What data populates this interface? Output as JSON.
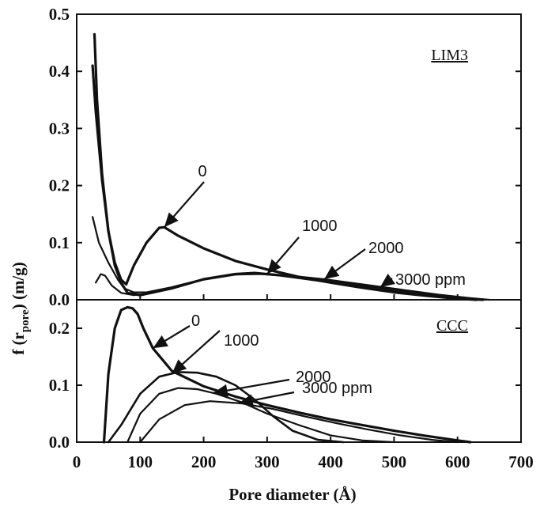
{
  "chart_data": [
    {
      "panel": "top",
      "type": "line",
      "label": "LIM3",
      "xlim": [
        0,
        700
      ],
      "ylim": [
        0,
        0.5
      ],
      "yticks": [
        "0.0",
        "0.1",
        "0.2",
        "0.3",
        "0.4",
        "0.5"
      ],
      "series": [
        {
          "name": "0",
          "x": [
            25,
            30,
            40,
            50,
            60,
            70,
            78,
            90,
            110,
            130,
            138,
            160,
            200,
            250,
            300,
            350,
            400,
            450,
            500,
            550,
            600,
            630
          ],
          "y": [
            0.41,
            0.33,
            0.21,
            0.12,
            0.065,
            0.035,
            0.027,
            0.06,
            0.1,
            0.126,
            0.127,
            0.112,
            0.09,
            0.068,
            0.053,
            0.04,
            0.03,
            0.021,
            0.013,
            0.007,
            0.002,
            0.0
          ]
        },
        {
          "name": "1000",
          "x": [
            28,
            32,
            40,
            50,
            60,
            70,
            80,
            100,
            150,
            200,
            250,
            280,
            320,
            380,
            440,
            500,
            560,
            610,
            640
          ],
          "y": [
            0.465,
            0.35,
            0.22,
            0.12,
            0.06,
            0.03,
            0.012,
            0.008,
            0.02,
            0.036,
            0.045,
            0.047,
            0.043,
            0.034,
            0.025,
            0.016,
            0.008,
            0.002,
            0.0
          ]
        },
        {
          "name": "2000",
          "x": [
            25,
            35,
            50,
            65,
            75,
            90,
            110,
            150,
            200,
            250,
            285,
            330,
            390,
            450,
            510,
            570,
            620,
            650
          ],
          "y": [
            0.145,
            0.1,
            0.065,
            0.035,
            0.02,
            0.013,
            0.013,
            0.022,
            0.035,
            0.044,
            0.046,
            0.043,
            0.036,
            0.027,
            0.018,
            0.009,
            0.003,
            0.0
          ]
        },
        {
          "name": "3000 ppm",
          "x": [
            30,
            38,
            45,
            55,
            70,
            90,
            120,
            160,
            200,
            250,
            290,
            340,
            400,
            460,
            520,
            580,
            630
          ],
          "y": [
            0.03,
            0.045,
            0.042,
            0.025,
            0.012,
            0.008,
            0.012,
            0.025,
            0.036,
            0.044,
            0.045,
            0.041,
            0.034,
            0.025,
            0.015,
            0.006,
            0.0
          ]
        }
      ],
      "annotations": [
        {
          "text": "0",
          "x": 138
        },
        {
          "text": "1000",
          "x": 300
        },
        {
          "text": "2000",
          "x": 390
        },
        {
          "text": "3000 ppm",
          "x": 478
        }
      ]
    },
    {
      "panel": "bottom",
      "type": "line",
      "label": "CCC",
      "xlim": [
        0,
        700
      ],
      "ylim": [
        0,
        0.25
      ],
      "yticks": [
        "0.0",
        "0.1",
        "0.2"
      ],
      "series": [
        {
          "name": "0",
          "x": [
            43,
            50,
            60,
            70,
            80,
            88,
            96,
            105,
            120,
            150,
            200,
            250,
            300,
            350,
            400,
            450,
            500,
            550,
            600,
            620
          ],
          "y": [
            0.0,
            0.12,
            0.2,
            0.232,
            0.237,
            0.235,
            0.225,
            0.2,
            0.165,
            0.125,
            0.098,
            0.08,
            0.065,
            0.052,
            0.04,
            0.03,
            0.02,
            0.011,
            0.003,
            0.0
          ]
        },
        {
          "name": "1000",
          "x": [
            50,
            70,
            100,
            130,
            160,
            190,
            220,
            250,
            280,
            310,
            340,
            380,
            420
          ],
          "y": [
            0.0,
            0.03,
            0.085,
            0.115,
            0.123,
            0.122,
            0.115,
            0.1,
            0.075,
            0.045,
            0.02,
            0.004,
            0.0
          ]
        },
        {
          "name": "2000",
          "x": [
            80,
            100,
            130,
            160,
            190,
            220,
            260,
            300,
            350,
            400,
            450,
            500
          ],
          "y": [
            0.0,
            0.05,
            0.085,
            0.095,
            0.093,
            0.085,
            0.07,
            0.05,
            0.03,
            0.012,
            0.003,
            0.0
          ]
        },
        {
          "name": "3000 ppm",
          "x": [
            100,
            130,
            170,
            210,
            260,
            310,
            360,
            410,
            460,
            510,
            560,
            600
          ],
          "y": [
            0.0,
            0.04,
            0.065,
            0.072,
            0.068,
            0.058,
            0.045,
            0.033,
            0.022,
            0.012,
            0.004,
            0.0
          ]
        }
      ],
      "annotations": [
        {
          "text": "0",
          "x": 120
        },
        {
          "text": "1000",
          "x": 150
        },
        {
          "text": "2000",
          "x": 215
        },
        {
          "text": "3000 ppm",
          "x": 255
        }
      ]
    }
  ],
  "x_axis": {
    "label": "Pore diameter (Å)",
    "ticks": [
      "0",
      "100",
      "200",
      "300",
      "400",
      "500",
      "600",
      "700"
    ]
  },
  "y_axis": {
    "label_main": "f (r",
    "label_sub": "pore",
    "label_units": ") (m/g)"
  }
}
